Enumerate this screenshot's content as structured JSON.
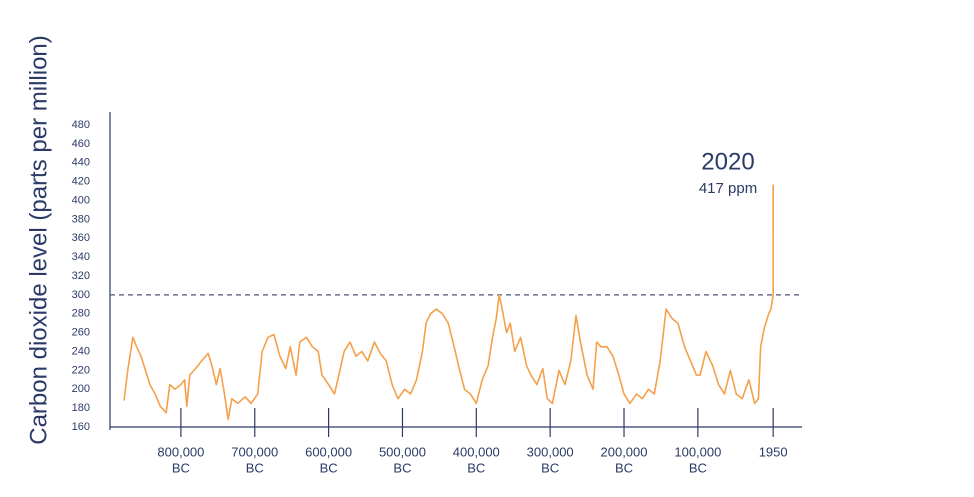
{
  "chart_data": {
    "type": "line",
    "y_label": "Carbon dioxide level (parts per million)",
    "annotation": {
      "text": "2020",
      "subtext": "417 ppm"
    },
    "reference_line": 300,
    "xlim": [
      -896000,
      41000
    ],
    "ylim": [
      160,
      480
    ],
    "yticks": [
      160,
      180,
      200,
      220,
      240,
      260,
      280,
      300,
      320,
      340,
      360,
      380,
      400,
      420,
      440,
      460,
      480
    ],
    "xticks": [
      {
        "value": -800000,
        "label": "800,000",
        "era": "BC"
      },
      {
        "value": -700000,
        "label": "700,000",
        "era": "BC"
      },
      {
        "value": -600000,
        "label": "600,000",
        "era": "BC"
      },
      {
        "value": -500000,
        "label": "500,000",
        "era": "BC"
      },
      {
        "value": -400000,
        "label": "400,000",
        "era": "BC"
      },
      {
        "value": -300000,
        "label": "300,000",
        "era": "BC"
      },
      {
        "value": -200000,
        "label": "200,000",
        "era": "BC"
      },
      {
        "value": -100000,
        "label": "100,000",
        "era": "BC"
      },
      1950
    ],
    "series": [
      {
        "color": "#f5a04a",
        "x": [
          -877000,
          -872000,
          -865000,
          -860000,
          -854000,
          -848000,
          -842000,
          -835000,
          -828000,
          -820000,
          -815000,
          -808000,
          -800000,
          -795000,
          -792000,
          -788000,
          -780000,
          -772000,
          -763000,
          -758000,
          -752000,
          -747000,
          -742000,
          -736000,
          -731000,
          -723000,
          -713000,
          -705000,
          -696000,
          -690000,
          -682000,
          -674000,
          -666000,
          -658000,
          -652000,
          -644000,
          -639000,
          -630000,
          -622000,
          -614000,
          -609000,
          -600000,
          -592000,
          -587000,
          -579000,
          -571000,
          -563000,
          -555000,
          -547000,
          -538000,
          -530000,
          -522000,
          -514000,
          -506000,
          -497000,
          -489000,
          -481000,
          -473000,
          -468000,
          -462000,
          -454000,
          -446000,
          -438000,
          -430000,
          -424000,
          -416000,
          -408000,
          -400000,
          -392000,
          -384000,
          -378000,
          -373000,
          -369000,
          -365000,
          -359000,
          -354000,
          -348000,
          -340000,
          -332000,
          -326000,
          -318000,
          -310000,
          -304000,
          -297000,
          -288000,
          -280000,
          -272000,
          -265000,
          -259000,
          -250000,
          -242000,
          -237000,
          -231000,
          -223000,
          -215000,
          -207000,
          -200000,
          -192000,
          -183000,
          -175000,
          -167000,
          -159000,
          -151000,
          -143000,
          -135000,
          -127000,
          -118000,
          -110000,
          -102000,
          -97000,
          -89000,
          -80000,
          -72000,
          -64000,
          -56000,
          -48000,
          -40000,
          -31000,
          -23000,
          -18000,
          -15000,
          -10000,
          -4000,
          -1000,
          1950,
          2020
        ],
        "values": [
          188,
          220,
          255,
          245,
          235,
          220,
          205,
          195,
          182,
          175,
          205,
          200,
          205,
          210,
          182,
          215,
          222,
          230,
          238,
          225,
          205,
          222,
          200,
          168,
          190,
          185,
          192,
          185,
          195,
          240,
          255,
          258,
          235,
          222,
          245,
          215,
          250,
          255,
          245,
          240,
          215,
          205,
          195,
          212,
          240,
          250,
          235,
          240,
          230,
          250,
          238,
          230,
          205,
          190,
          200,
          195,
          210,
          240,
          270,
          280,
          285,
          280,
          270,
          245,
          225,
          200,
          195,
          185,
          210,
          225,
          255,
          275,
          300,
          285,
          260,
          270,
          240,
          255,
          225,
          215,
          205,
          222,
          190,
          185,
          220,
          205,
          230,
          278,
          250,
          215,
          200,
          250,
          245,
          245,
          235,
          215,
          195,
          185,
          195,
          190,
          200,
          195,
          230,
          285,
          275,
          270,
          245,
          230,
          215,
          215,
          240,
          225,
          205,
          195,
          220,
          195,
          190,
          210,
          185,
          190,
          245,
          265,
          280,
          285,
          300,
          417
        ]
      }
    ]
  }
}
